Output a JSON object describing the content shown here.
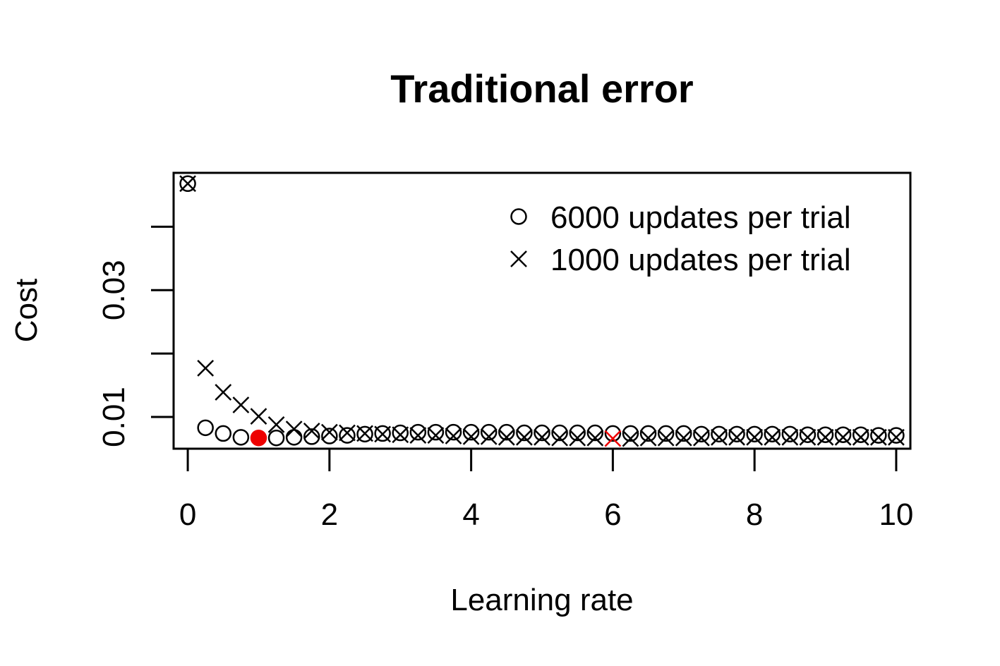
{
  "chart_data": {
    "type": "scatter",
    "title": "Traditional error",
    "xlabel": "Learning rate",
    "ylabel": "Cost",
    "xlim": [
      -0.2,
      10.2
    ],
    "ylim": [
      0.005,
      0.0485
    ],
    "x_ticks": [
      0,
      2,
      4,
      6,
      8,
      10
    ],
    "x_tick_labels": [
      "0",
      "2",
      "4",
      "6",
      "8",
      "10"
    ],
    "y_ticks": [
      0.01,
      0.02,
      0.03,
      0.04
    ],
    "y_tick_labels": [
      "0.01",
      "",
      "0.03",
      ""
    ],
    "grid": false,
    "legend_position": "top-right",
    "series": [
      {
        "name": "6000 updates per trial",
        "marker": "circle",
        "color": "#000000",
        "x": [
          0,
          0.25,
          0.5,
          0.75,
          1.0,
          1.25,
          1.5,
          1.75,
          2.0,
          2.25,
          2.5,
          2.75,
          3.0,
          3.25,
          3.5,
          3.75,
          4.0,
          4.25,
          4.5,
          4.75,
          5.0,
          5.25,
          5.5,
          5.75,
          6.0,
          6.25,
          6.5,
          6.75,
          7.0,
          7.25,
          7.5,
          7.75,
          8.0,
          8.25,
          8.5,
          8.75,
          9.0,
          9.25,
          9.5,
          9.75,
          10.0
        ],
        "y": [
          0.0468,
          0.0083,
          0.0074,
          0.0068,
          0.0067,
          0.0067,
          0.0068,
          0.0069,
          0.007,
          0.0071,
          0.0073,
          0.0074,
          0.0075,
          0.0076,
          0.0076,
          0.0076,
          0.0076,
          0.0076,
          0.0076,
          0.0075,
          0.0075,
          0.0075,
          0.0075,
          0.0075,
          0.0074,
          0.0074,
          0.0074,
          0.0074,
          0.0074,
          0.0073,
          0.0073,
          0.0073,
          0.0073,
          0.0073,
          0.0073,
          0.0072,
          0.0072,
          0.0072,
          0.0072,
          0.0071,
          0.0071
        ],
        "highlight": {
          "x": 1.0,
          "y": 0.0067,
          "color": "#ee0000"
        }
      },
      {
        "name": "1000 updates per trial",
        "marker": "x",
        "color": "#000000",
        "x": [
          0,
          0.25,
          0.5,
          0.75,
          1.0,
          1.25,
          1.5,
          1.75,
          2.0,
          2.25,
          2.5,
          2.75,
          3.0,
          3.25,
          3.5,
          3.75,
          4.0,
          4.25,
          4.5,
          4.75,
          5.0,
          5.25,
          5.5,
          5.75,
          6.0,
          6.25,
          6.5,
          6.75,
          7.0,
          7.25,
          7.5,
          7.75,
          8.0,
          8.25,
          8.5,
          8.75,
          9.0,
          9.25,
          9.5,
          9.75,
          10.0
        ],
        "y": [
          0.0468,
          0.0177,
          0.0139,
          0.0119,
          0.0101,
          0.0088,
          0.0081,
          0.0078,
          0.0076,
          0.0075,
          0.0074,
          0.0073,
          0.0072,
          0.0071,
          0.0071,
          0.007,
          0.0069,
          0.0069,
          0.0068,
          0.0068,
          0.0068,
          0.0067,
          0.0067,
          0.0067,
          0.0066,
          0.0066,
          0.0067,
          0.0067,
          0.0067,
          0.0067,
          0.0068,
          0.0068,
          0.0068,
          0.0068,
          0.0068,
          0.0068,
          0.0068,
          0.0068,
          0.0068,
          0.0068,
          0.0068
        ],
        "highlight": {
          "x": 6.0,
          "y": 0.0066,
          "color": "#ee0000"
        }
      }
    ]
  }
}
